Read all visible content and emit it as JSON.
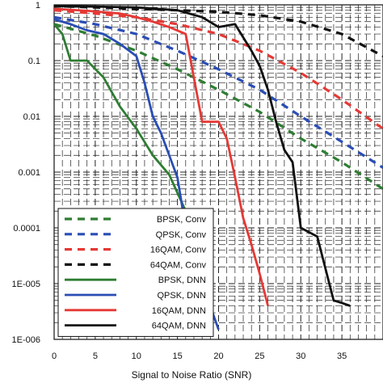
{
  "chart_data": {
    "type": "line",
    "title": "",
    "xlabel": "Signal to Noise Ratio (SNR)",
    "ylabel": "",
    "xlim": [
      0,
      40
    ],
    "ylim": [
      1e-06,
      1
    ],
    "yscale": "log",
    "x_ticks": [
      0,
      5,
      10,
      15,
      20,
      25,
      30,
      35
    ],
    "y_ticks": [
      {
        "value": 1,
        "label": "1"
      },
      {
        "value": 0.1,
        "label": "0.1"
      },
      {
        "value": 0.01,
        "label": "0.01"
      },
      {
        "value": 0.001,
        "label": "0.001"
      },
      {
        "value": 0.0001,
        "label": "0.0001"
      },
      {
        "value": 1e-05,
        "label": "1E-005"
      },
      {
        "value": 1e-06,
        "label": "1E-006"
      }
    ],
    "grid": true,
    "legend_position": "bottom-left",
    "series": [
      {
        "name": "BPSK, Conv",
        "color": "#2e7d32",
        "style": "dashed",
        "x": [
          0,
          5,
          10,
          15,
          20,
          25,
          30,
          35,
          40
        ],
        "y": [
          0.45,
          0.28,
          0.15,
          0.07,
          0.03,
          0.012,
          0.004,
          0.0015,
          0.0005
        ]
      },
      {
        "name": "QPSK, Conv",
        "color": "#2a4db5",
        "style": "dashed",
        "x": [
          0,
          5,
          10,
          15,
          20,
          25,
          30,
          35,
          40
        ],
        "y": [
          0.6,
          0.45,
          0.3,
          0.15,
          0.07,
          0.03,
          0.01,
          0.0035,
          0.0012
        ]
      },
      {
        "name": "16QAM, Conv",
        "color": "#e53935",
        "style": "dashed",
        "x": [
          0,
          5,
          10,
          15,
          20,
          25,
          30,
          35,
          40
        ],
        "y": [
          0.8,
          0.7,
          0.6,
          0.45,
          0.3,
          0.15,
          0.06,
          0.02,
          0.006
        ]
      },
      {
        "name": "64QAM, Conv",
        "color": "#111111",
        "style": "dashed",
        "x": [
          0,
          5,
          10,
          15,
          20,
          25,
          30,
          35,
          40
        ],
        "y": [
          0.95,
          0.9,
          0.85,
          0.8,
          0.75,
          0.65,
          0.5,
          0.3,
          0.12
        ]
      },
      {
        "name": "BPSK, DNN",
        "color": "#2e7d32",
        "style": "solid",
        "x": [
          0,
          1,
          2,
          4,
          6,
          8,
          10,
          12,
          14,
          16,
          17,
          18
        ],
        "y": [
          0.45,
          0.3,
          0.1,
          0.1,
          0.05,
          0.015,
          0.006,
          0.002,
          0.0009,
          0.0002,
          0.0001,
          7e-05
        ]
      },
      {
        "name": "QPSK, DNN",
        "color": "#2a4db5",
        "style": "solid",
        "x": [
          0,
          2,
          4,
          6,
          8,
          10,
          11,
          12,
          13,
          14,
          15,
          16,
          17,
          18,
          20
        ],
        "y": [
          0.55,
          0.45,
          0.35,
          0.3,
          0.2,
          0.12,
          0.04,
          0.01,
          0.005,
          0.002,
          0.0008,
          0.0001,
          3e-05,
          1e-05,
          1.5e-06
        ]
      },
      {
        "name": "16QAM, DNN",
        "color": "#e53935",
        "style": "solid",
        "x": [
          0,
          4,
          8,
          10,
          12,
          14,
          16,
          18,
          20,
          21,
          22,
          23,
          24,
          25,
          26
        ],
        "y": [
          0.85,
          0.78,
          0.7,
          0.6,
          0.5,
          0.4,
          0.3,
          0.008,
          0.008,
          0.004,
          0.0008,
          0.00015,
          5e-05,
          1.5e-05,
          4e-06
        ]
      },
      {
        "name": "64QAM, DNN",
        "color": "#111111",
        "style": "solid",
        "x": [
          0,
          5,
          10,
          15,
          18,
          20,
          22,
          24,
          25,
          26,
          27,
          28,
          29,
          30,
          32,
          34,
          35,
          36
        ],
        "y": [
          0.95,
          0.93,
          0.9,
          0.8,
          0.6,
          0.4,
          0.45,
          0.15,
          0.08,
          0.03,
          0.008,
          0.0025,
          0.0015,
          0.0001,
          7e-05,
          5e-06,
          4.5e-06,
          4e-06
        ]
      }
    ]
  }
}
